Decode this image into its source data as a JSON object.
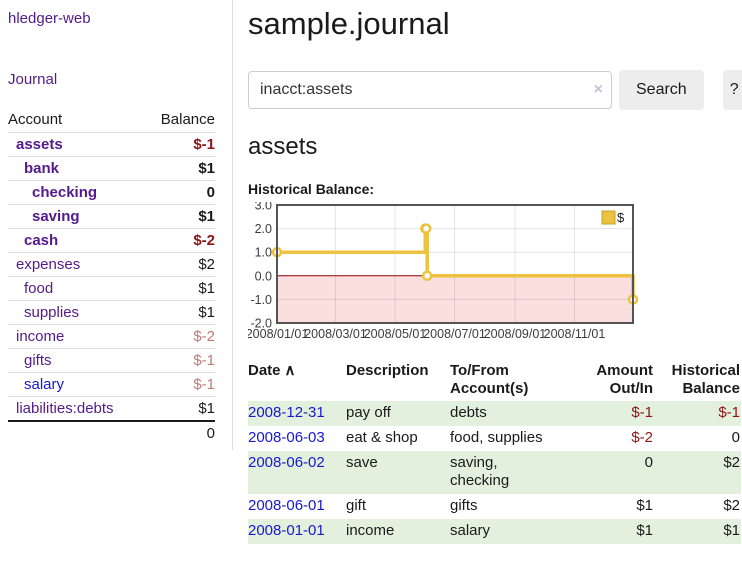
{
  "sidebar": {
    "brand": "hledger-web",
    "nav": {
      "journal": "Journal"
    },
    "accounts_table": {
      "headers": {
        "account": "Account",
        "balance": "Balance"
      },
      "rows": [
        {
          "name": "assets",
          "indent": 1,
          "bold": true,
          "balance": "$-1",
          "balance_style": "neg"
        },
        {
          "name": "bank",
          "indent": 2,
          "bold": true,
          "balance": "$1",
          "balance_style": "pos"
        },
        {
          "name": "checking",
          "indent": 3,
          "bold": true,
          "balance": "0",
          "balance_style": "pos"
        },
        {
          "name": "saving",
          "indent": 3,
          "bold": true,
          "balance": "$1",
          "balance_style": "pos"
        },
        {
          "name": "cash",
          "indent": 2,
          "bold": true,
          "balance": "$-2",
          "balance_style": "neg"
        },
        {
          "name": "expenses",
          "indent": 1,
          "bold": false,
          "balance": "$2",
          "balance_style": "pos"
        },
        {
          "name": "food",
          "indent": 2,
          "bold": false,
          "balance": "$1",
          "balance_style": "pos"
        },
        {
          "name": "supplies",
          "indent": 2,
          "bold": false,
          "balance": "$1",
          "balance_style": "pos"
        },
        {
          "name": "income",
          "indent": 1,
          "bold": false,
          "balance": "$-2",
          "balance_style": "negfade"
        },
        {
          "name": "gifts",
          "indent": 2,
          "bold": false,
          "balance": "$-1",
          "balance_style": "negfade"
        },
        {
          "name": "salary",
          "indent": 2,
          "bold": false,
          "balance": "$-1",
          "balance_style": "negfade",
          "link_style": "blue"
        },
        {
          "name": "liabilities:debts",
          "indent": 1,
          "bold": false,
          "balance": "$1",
          "balance_style": "pos"
        }
      ],
      "total": "0"
    }
  },
  "header": {
    "title": "sample.journal"
  },
  "search": {
    "value": "inacct:assets",
    "clear_icon": "×",
    "button": "Search",
    "help_button": "?"
  },
  "account_page": {
    "heading": "assets",
    "chart_label": "Historical Balance:"
  },
  "chart_data": {
    "type": "line",
    "title": "Historical Balance",
    "step": true,
    "series": [
      {
        "name": "$",
        "points": [
          [
            "2008-01-01",
            1
          ],
          [
            "2008-06-01",
            2
          ],
          [
            "2008-06-02",
            2
          ],
          [
            "2008-06-03",
            0
          ],
          [
            "2008-12-31",
            -1
          ]
        ]
      }
    ],
    "x_domain": [
      "2008-01-01",
      "2008-12-31"
    ],
    "ylim": [
      -2,
      3
    ],
    "yticks": [
      3,
      2,
      1,
      0,
      -1,
      -2
    ],
    "xticks": [
      "2008/01/01",
      "2008/03/01",
      "2008/05/01",
      "2008/07/01",
      "2008/09/01",
      "2008/11/01"
    ],
    "grid": true,
    "legend_position": "top-right",
    "line_color": "#edc240",
    "negative_region_fill": "#fbdfdf",
    "zero_line_color": "#8b0000",
    "border_color": "#545454"
  },
  "register_table": {
    "headers": {
      "date": "Date",
      "sort_icon": "∧",
      "description": "Description",
      "tofrom": "To/From Account(s)",
      "amount": "Amount Out/In",
      "balance": "Historical Balance"
    },
    "rows": [
      {
        "date": "2008-12-31",
        "description": "pay off",
        "accounts": "debts",
        "amount": "$-1",
        "amount_style": "neg",
        "balance": "$-1",
        "balance_style": "neg"
      },
      {
        "date": "2008-06-03",
        "description": "eat & shop",
        "accounts": "food, supplies",
        "amount": "$-2",
        "amount_style": "neg",
        "balance": "0",
        "balance_style": "pos"
      },
      {
        "date": "2008-06-02",
        "description": "save",
        "accounts": "saving, checking",
        "amount": "0",
        "amount_style": "pos",
        "balance": "$2",
        "balance_style": "pos"
      },
      {
        "date": "2008-06-01",
        "description": "gift",
        "accounts": "gifts",
        "amount": "$1",
        "amount_style": "pos",
        "balance": "$2",
        "balance_style": "pos"
      },
      {
        "date": "2008-01-01",
        "description": "income",
        "accounts": "salary",
        "amount": "$1",
        "amount_style": "pos",
        "balance": "$1",
        "balance_style": "pos"
      }
    ]
  },
  "colors": {
    "link_purple": "#551a8b",
    "link_blue": "#1818cf",
    "negative": "#8f1414",
    "negative_faded": "#c17a7a",
    "row_stripe_green": "#e3f0dd",
    "button_bg": "#ededed",
    "chart_line": "#edc240"
  }
}
